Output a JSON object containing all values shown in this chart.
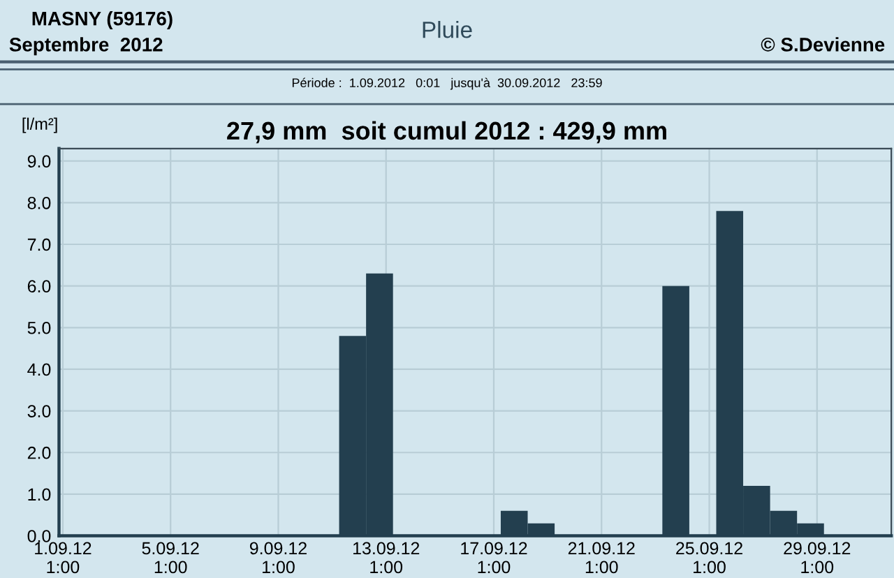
{
  "chart_data": {
    "type": "bar",
    "title": "Pluie",
    "ylabel": "[l/m²]",
    "annotations": [
      "MASNY (59176)",
      "Septembre  2012",
      "© S.Devienne",
      "Période :  1.09.2012   0:01   jusqu'à  30.09.2012   23:59",
      "27,9 mm  soit cumul 2012 : 429,9 mm"
    ],
    "x": [
      "2012-09-11T19:12",
      "2012-09-12T19:12",
      "2012-09-17T19:12",
      "2012-09-18T19:12",
      "2012-09-23T19:12",
      "2012-09-25T19:12",
      "2012-09-26T19:12",
      "2012-09-27T19:12",
      "2012-09-28T19:12"
    ],
    "values": [
      4.8,
      6.3,
      0.6,
      0.3,
      6.0,
      7.8,
      1.2,
      0.6,
      0.3
    ],
    "color": "#233f4f",
    "xlim": [
      "2012-08-31T21:36",
      "2012-10-01T19:12"
    ],
    "xticks": [
      {
        "value": "2012-09-01T01:00",
        "label": "1.09.12\n1:00"
      },
      {
        "value": "2012-09-05T01:00",
        "label": "5.09.12\n1:00"
      },
      {
        "value": "2012-09-09T01:00",
        "label": "9.09.12\n1:00"
      },
      {
        "value": "2012-09-13T01:00",
        "label": "13.09.12\n1:00"
      },
      {
        "value": "2012-09-17T01:00",
        "label": "17.09.12\n1:00"
      },
      {
        "value": "2012-09-21T01:00",
        "label": "21.09.12\n1:00"
      },
      {
        "value": "2012-09-25T01:00",
        "label": "25.09.12\n1:00"
      },
      {
        "value": "2012-09-29T01:00",
        "label": "29.09.12\n1:00"
      }
    ],
    "ylim": [
      0,
      9.3
    ],
    "yticks": [
      {
        "value": 0,
        "label": "0.0"
      },
      {
        "value": 1,
        "label": "1.0"
      },
      {
        "value": 2,
        "label": "2.0"
      },
      {
        "value": 3,
        "label": "3.0"
      },
      {
        "value": 4,
        "label": "4.0"
      },
      {
        "value": 5,
        "label": "5.0"
      },
      {
        "value": 6,
        "label": "6.0"
      },
      {
        "value": 7,
        "label": "7.0"
      },
      {
        "value": 8,
        "label": "8.0"
      },
      {
        "value": 9,
        "label": "9.0"
      }
    ],
    "grid": true,
    "legend": false
  }
}
